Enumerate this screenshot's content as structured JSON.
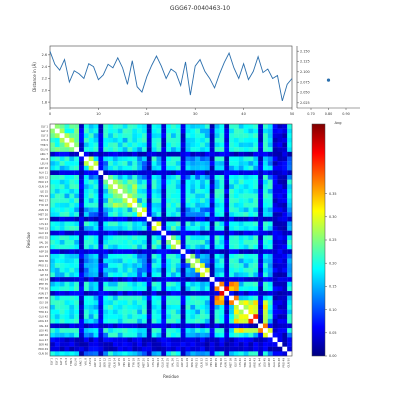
{
  "title": "GGG67-0040463-10",
  "chart_data": [
    {
      "type": "line",
      "ylabel": "Distance in (Å)",
      "xlim": [
        0,
        50
      ],
      "ylim": [
        1.7,
        2.75
      ],
      "x_ticks": [
        "0",
        "10",
        "20",
        "30",
        "40",
        "50"
      ],
      "y_ticks": [
        "1.8",
        "2.0",
        "2.2",
        "2.4",
        "2.6"
      ],
      "values": [
        2.66,
        2.44,
        2.34,
        2.52,
        2.14,
        2.33,
        2.28,
        2.2,
        2.45,
        2.4,
        2.18,
        2.26,
        2.44,
        2.38,
        2.55,
        2.38,
        2.1,
        2.5,
        2.06,
        1.97,
        2.23,
        2.42,
        2.58,
        2.41,
        2.2,
        2.36,
        2.3,
        2.08,
        2.48,
        1.92,
        2.41,
        2.52,
        2.32,
        2.2,
        2.04,
        2.27,
        2.47,
        2.63,
        2.38,
        2.2,
        2.45,
        2.18,
        2.32,
        2.57,
        2.3,
        2.36,
        2.2,
        2.25,
        1.82,
        2.1,
        2.2
      ]
    },
    {
      "type": "scatter",
      "xlabel": "Avg",
      "x_ticks": [
        "0.70",
        "0.80",
        "0.90"
      ],
      "y_ticks": [
        "2.025",
        "2.050",
        "2.075",
        "2.100",
        "2.125",
        "2.150"
      ],
      "points": [
        {
          "x": 0.8,
          "y": 2.08
        }
      ]
    },
    {
      "type": "heatmap",
      "xlabel": "Residue",
      "ylabel": "Residue",
      "size": 50,
      "labels": [
        "GLY 1",
        "GLY 2",
        "GLY 3",
        "LYS 4",
        "THR 5",
        "GLU 6",
        "ARG 7",
        "VAL 8",
        "LEU 9",
        "ASP 10",
        "ALA 11",
        "SER 12",
        "PRO 13",
        "GLN 14",
        "ILE 15",
        "HIS 16",
        "PHE 17",
        "TYR 18",
        "ASN 19",
        "MET 20",
        "GLY 21",
        "LYS 22",
        "THR 23",
        "GLU 24",
        "ARG 25",
        "VAL 26",
        "LEU 27",
        "ASP 28",
        "ALA 29",
        "SER 30",
        "PRO 31",
        "GLN 32",
        "ILE 33",
        "HIS 34",
        "PHE 35",
        "TYR 36",
        "ASN 37",
        "MET 38",
        "GLY 39",
        "LYS 40",
        "THR 41",
        "GLU 42",
        "ARG 43",
        "VAL 44",
        "LEU 45",
        "ASP 46",
        "ALA 47",
        "SER 48",
        "PRO 49",
        "GLN 50"
      ],
      "value_range": [
        0,
        0.5
      ],
      "colorbar_ticks": [
        "0.00",
        "0.05",
        "0.10",
        "0.15",
        "0.20",
        "0.25",
        "0.30",
        "0.35"
      ],
      "colorbar_tick_values": [
        0,
        0.05,
        0.1,
        0.15,
        0.2,
        0.25,
        0.3,
        0.35
      ],
      "low_rows": [
        6,
        10,
        20,
        23,
        27,
        33,
        36,
        43,
        46,
        47,
        48
      ],
      "high_blocks": [
        {
          "from": 0,
          "to": 5,
          "value": 0.22
        },
        {
          "from": 12,
          "to": 17,
          "value": 0.24
        },
        {
          "from": 21,
          "to": 26,
          "value": 0.2
        },
        {
          "from": 34,
          "to": 38,
          "value": 0.34
        },
        {
          "from": 38,
          "to": 44,
          "value": 0.3
        }
      ],
      "hot_cells": [
        [
          34,
          34,
          0.48
        ],
        [
          35,
          36,
          0.45
        ],
        [
          40,
          40,
          0.44
        ],
        [
          41,
          42,
          0.42
        ],
        [
          43,
          44,
          0.38
        ],
        [
          38,
          42,
          0.33
        ]
      ]
    }
  ]
}
